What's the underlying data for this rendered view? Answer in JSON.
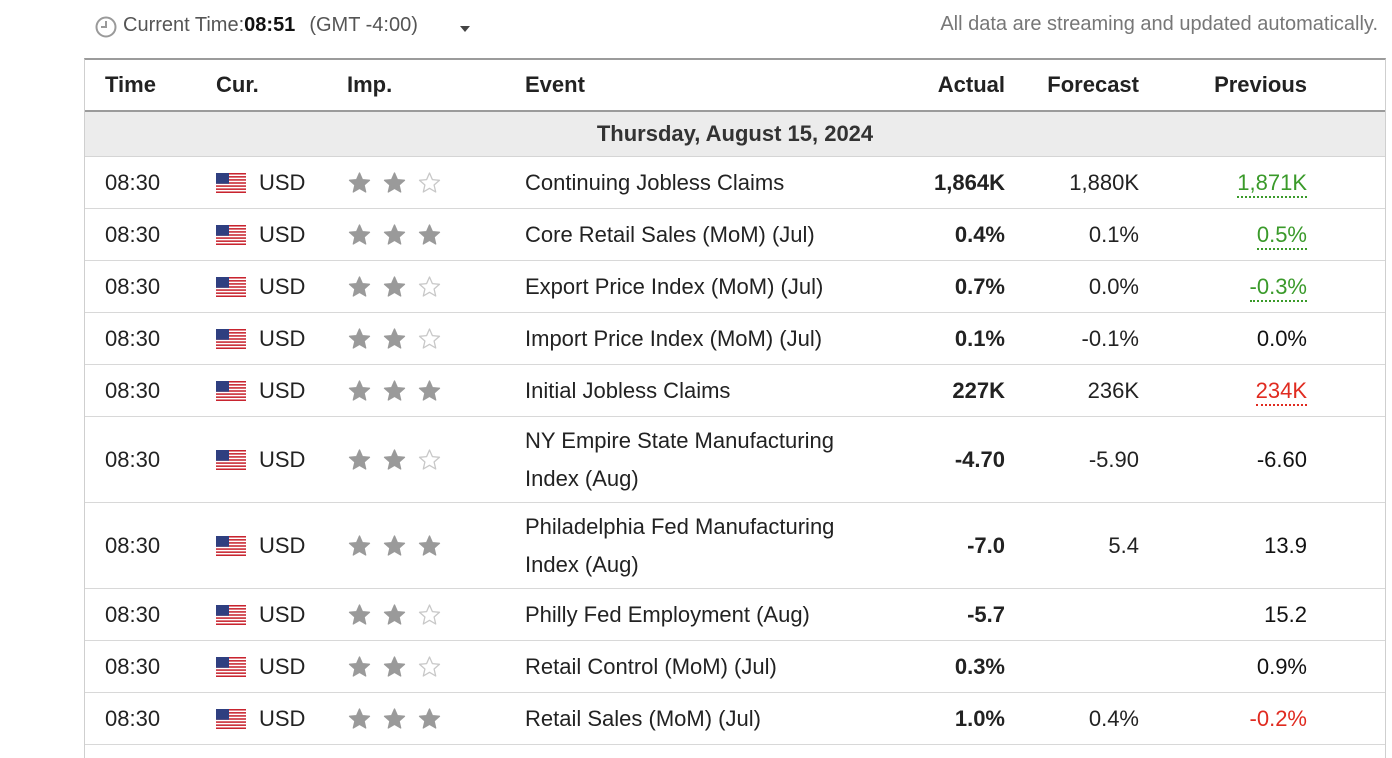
{
  "topbar": {
    "current_time_label": "Current Time:",
    "current_time_value": "08:51",
    "timezone": "(GMT -4:00)",
    "streaming_note": "All data are streaming and updated automatically."
  },
  "table": {
    "headers": {
      "time": "Time",
      "currency": "Cur.",
      "importance": "Imp.",
      "event": "Event",
      "actual": "Actual",
      "forecast": "Forecast",
      "previous": "Previous"
    },
    "day": "Thursday, August 15, 2024",
    "rows": [
      {
        "time": "08:30",
        "currency": "USD",
        "importance": 2,
        "event": "Continuing Jobless Claims",
        "actual": "1,864K",
        "actual_status": "pos",
        "forecast": "1,880K",
        "previous": "1,871K",
        "previous_status": "prev-pos"
      },
      {
        "time": "08:30",
        "currency": "USD",
        "importance": 3,
        "event": "Core Retail Sales (MoM) (Jul)",
        "actual": "0.4%",
        "actual_status": "pos",
        "forecast": "0.1%",
        "previous": "0.5%",
        "previous_status": "prev-pos"
      },
      {
        "time": "08:30",
        "currency": "USD",
        "importance": 2,
        "event": "Export Price Index (MoM) (Jul)",
        "actual": "0.7%",
        "actual_status": "pos",
        "forecast": "0.0%",
        "previous": "-0.3%",
        "previous_status": "prev-pos"
      },
      {
        "time": "08:30",
        "currency": "USD",
        "importance": 2,
        "event": "Import Price Index (MoM) (Jul)",
        "actual": "0.1%",
        "actual_status": "pos",
        "forecast": "-0.1%",
        "previous": "0.0%",
        "previous_status": "prev-plain"
      },
      {
        "time": "08:30",
        "currency": "USD",
        "importance": 3,
        "event": "Initial Jobless Claims",
        "actual": "227K",
        "actual_status": "pos",
        "forecast": "236K",
        "previous": "234K",
        "previous_status": "prev-neg"
      },
      {
        "time": "08:30",
        "currency": "USD",
        "importance": 2,
        "event": "NY Empire State Manufacturing Index (Aug)",
        "actual": "-4.70",
        "actual_status": "pos",
        "forecast": "-5.90",
        "previous": "-6.60",
        "previous_status": "prev-plain"
      },
      {
        "time": "08:30",
        "currency": "USD",
        "importance": 3,
        "event": "Philadelphia Fed Manufacturing Index (Aug)",
        "actual": "-7.0",
        "actual_status": "neg",
        "forecast": "5.4",
        "previous": "13.9",
        "previous_status": "prev-plain"
      },
      {
        "time": "08:30",
        "currency": "USD",
        "importance": 2,
        "event": "Philly Fed Employment (Aug)",
        "actual": "-5.7",
        "actual_status": "neu",
        "forecast": "",
        "previous": "15.2",
        "previous_status": "prev-plain"
      },
      {
        "time": "08:30",
        "currency": "USD",
        "importance": 2,
        "event": "Retail Control (MoM) (Jul)",
        "actual": "0.3%",
        "actual_status": "neu",
        "forecast": "",
        "previous": "0.9%",
        "previous_status": "prev-plain"
      },
      {
        "time": "08:30",
        "currency": "USD",
        "importance": 3,
        "event": "Retail Sales (MoM) (Jul)",
        "actual": "1.0%",
        "actual_status": "pos",
        "forecast": "0.4%",
        "previous": "-0.2%",
        "previous_status": "prev-neg-plain"
      }
    ]
  },
  "colors": {
    "positive": "#3a9a2a",
    "negative": "#e02b20",
    "star_filled": "#9a9a9a",
    "star_empty": "#c8c8c8",
    "day_row_bg": "#ececec"
  },
  "icons": {
    "clock": "clock-icon",
    "caret": "chevron-down-icon",
    "flag": "us-flag-icon",
    "star": "star-icon"
  }
}
